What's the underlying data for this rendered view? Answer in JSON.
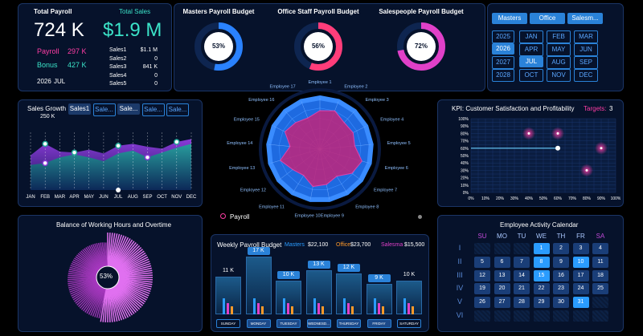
{
  "kpi": {
    "total_payroll_label": "Total Payroll",
    "total_payroll": "724 K",
    "total_sales_label": "Total Sales",
    "total_sales": "$1.9 M",
    "payroll_label": "Payroll",
    "payroll_value": "297 K",
    "bonus_label": "Bonus",
    "bonus_value": "427 K",
    "year": "2026",
    "month": "JUL",
    "sales_rows": [
      {
        "name": "Sales1",
        "value": "$1.1 M"
      },
      {
        "name": "Sales2",
        "value": "0"
      },
      {
        "name": "Sales3",
        "value": "841 K"
      },
      {
        "name": "Sales4",
        "value": "0"
      },
      {
        "name": "Sales5",
        "value": "0"
      }
    ]
  },
  "budgets": [
    {
      "title": "Masters Payroll Budget",
      "pct": "53%",
      "fraction": 0.53,
      "color": "#2a82ff"
    },
    {
      "title": "Office Staff Payroll Budget",
      "pct": "56%",
      "fraction": 0.56,
      "color": "#ff3d7a"
    },
    {
      "title": "Salespeople Payroll Budget",
      "pct": "72%",
      "fraction": 0.72,
      "color": "#e040c8"
    }
  ],
  "filters": {
    "categories": [
      "Masters",
      "Office",
      "Salesm..."
    ],
    "years": [
      "2025",
      "2026",
      "2027",
      "2028"
    ],
    "selected_year": "2026",
    "months": [
      "JAN",
      "FEB",
      "MAR",
      "APR",
      "MAY",
      "JUN",
      "JUL",
      "AUG",
      "SEP",
      "OCT",
      "NOV",
      "DEC"
    ],
    "selected_month": "JUL"
  },
  "sales_growth": {
    "title": "Sales Growth",
    "tabs": [
      "Sales1",
      "Sale...",
      "Sale...",
      "Sale...",
      "Sale..."
    ],
    "value_label": "250 K",
    "months": [
      "JAN",
      "FEB",
      "MAR",
      "APR",
      "MAY",
      "JUN",
      "JUL",
      "AUG",
      "SEP",
      "OCT",
      "NOV",
      "DEC"
    ],
    "series_a": [
      180,
      240,
      200,
      195,
      210,
      190,
      230,
      240,
      225,
      215,
      250,
      265
    ],
    "series_b": [
      130,
      140,
      170,
      185,
      170,
      150,
      190,
      205,
      170,
      195,
      220,
      240
    ],
    "ymax": 300
  },
  "radar": {
    "employees": [
      "Employee 1",
      "Employee 2",
      "Employee 3",
      "Employee 4",
      "Employee 5",
      "Employee 6",
      "Employee 7",
      "Employee 8",
      "Employee 9",
      "Employee 10",
      "Employee 11",
      "Employee 12",
      "Employee 13",
      "Employee 14",
      "Employee 15",
      "Employee 16",
      "Employee 17"
    ],
    "values": [
      0.75,
      0.8,
      0.7,
      0.72,
      0.68,
      0.85,
      0.78,
      0.62,
      0.7,
      0.74,
      0.6,
      0.66,
      0.8,
      0.58,
      0.76,
      0.7,
      0.65
    ],
    "legend": "Payroll"
  },
  "kpi_chart": {
    "title": "KPI: Customer Satisfaction and Profitability",
    "targets_label": "Targets:",
    "targets_value": "3",
    "y_ticks": [
      "100%",
      "90%",
      "80%",
      "70%",
      "60%",
      "50%",
      "40%",
      "30%",
      "20%",
      "10%",
      "0%"
    ],
    "x_ticks": [
      "0%",
      "10%",
      "20%",
      "30%",
      "40%",
      "50%",
      "60%",
      "70%",
      "80%",
      "90%",
      "100%"
    ],
    "line": {
      "y": 0.6,
      "x_end": 0.6
    },
    "targets": [
      [
        0.4,
        0.8
      ],
      [
        0.6,
        0.8
      ],
      [
        0.9,
        0.6
      ],
      [
        0.8,
        0.3
      ]
    ]
  },
  "balance": {
    "title": "Balance of Working Hours and Overtime",
    "pct": "53%",
    "fraction": 0.53
  },
  "weekly": {
    "title": "Weekly Payroll Budget",
    "legend": [
      {
        "name": "Masters",
        "value": "$22,100",
        "color": "#2a9cff"
      },
      {
        "name": "Office",
        "value": "$23,700",
        "color": "#ff9a2a"
      },
      {
        "name": "Salesma",
        "value": "$15,500",
        "color": "#e040c8"
      }
    ],
    "days": [
      "SUNDAY",
      "MONDAY",
      "TUESDAY",
      "WEDNESD...",
      "THURSDAY",
      "FRIDAY",
      "SATURDAY"
    ],
    "labels": [
      "11 K",
      "17 K",
      "10 K",
      "13 K",
      "12 K",
      "9 K",
      "10 K"
    ],
    "totals": [
      11,
      17,
      10,
      13,
      12,
      9,
      10
    ],
    "highlighted": [
      false,
      true,
      true,
      true,
      true,
      true,
      false
    ]
  },
  "calendar": {
    "title": "Employee Activity Calendar",
    "weekdays": [
      "SU",
      "MO",
      "TU",
      "WE",
      "TH",
      "FR",
      "SA"
    ],
    "weeks": [
      "I",
      "II",
      "III",
      "IV",
      "V",
      "VI"
    ],
    "cells": [
      [
        "",
        "",
        "",
        "1",
        "2",
        "3",
        "4"
      ],
      [
        "5",
        "6",
        "7",
        "8",
        "9",
        "10",
        "11"
      ],
      [
        "12",
        "13",
        "14",
        "15",
        "16",
        "17",
        "18"
      ],
      [
        "19",
        "20",
        "21",
        "22",
        "23",
        "24",
        "25"
      ],
      [
        "26",
        "27",
        "28",
        "29",
        "30",
        "31",
        ""
      ],
      [
        "",
        "",
        "",
        "",
        "",
        "",
        ""
      ]
    ],
    "highlighted": [
      "1",
      "8",
      "10",
      "15",
      "31"
    ]
  }
}
